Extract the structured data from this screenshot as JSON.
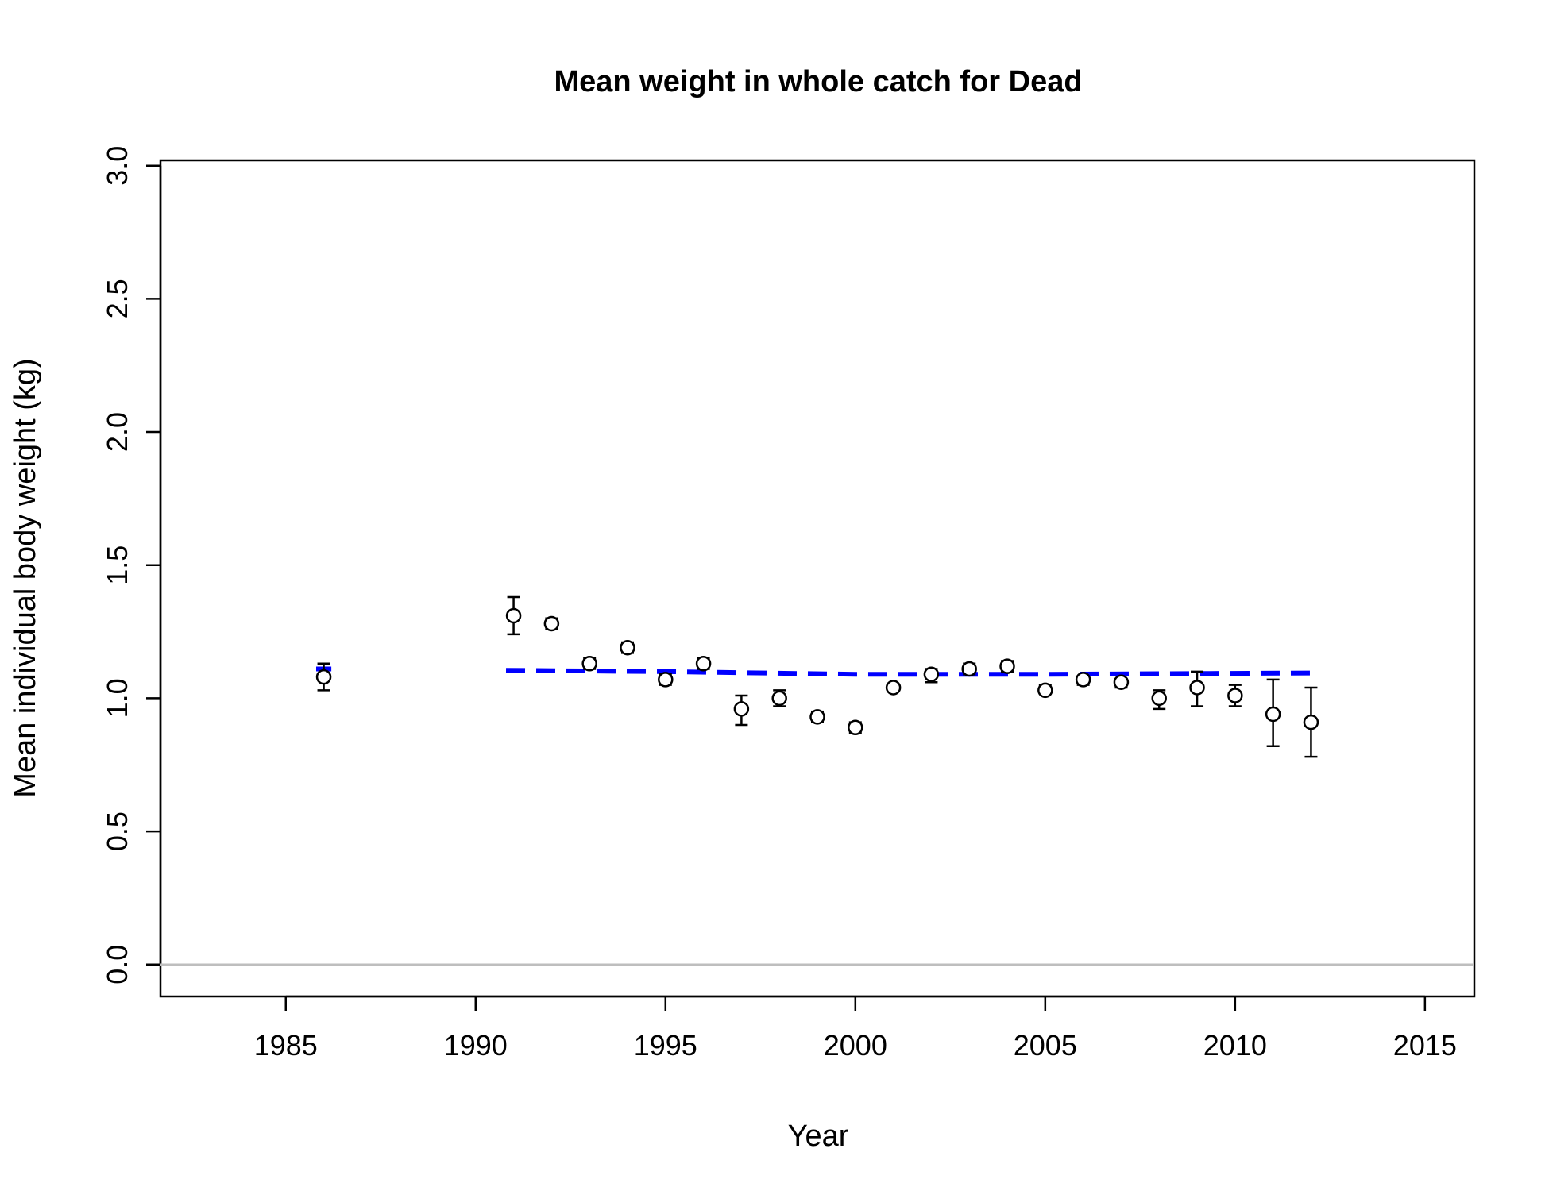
{
  "chart_data": {
    "type": "scatter",
    "title": "Mean weight in whole catch for Dead",
    "xlabel": "Year",
    "ylabel": "Mean individual body weight (kg)",
    "xlim": [
      1981.7,
      2016.3
    ],
    "ylim": [
      -0.12,
      3.02
    ],
    "x_ticks": [
      1985,
      1990,
      1995,
      2000,
      2005,
      2010,
      2015
    ],
    "y_ticks": [
      0.0,
      0.5,
      1.0,
      1.5,
      2.0,
      2.5,
      3.0
    ],
    "x_tick_labels": [
      "1985",
      "1990",
      "1995",
      "2000",
      "2005",
      "2010",
      "2015"
    ],
    "y_tick_labels": [
      "0.0",
      "0.5",
      "1.0",
      "1.5",
      "2.0",
      "2.5",
      "3.0"
    ],
    "reference_line": {
      "y": 0,
      "color": "#bebebe"
    },
    "grid": false,
    "legend": "none",
    "observed": {
      "marker": "open-circle",
      "color": "#000000",
      "points": [
        {
          "x": 1986,
          "y": 1.08,
          "lo": 1.03,
          "hi": 1.13
        },
        {
          "x": 1991,
          "y": 1.31,
          "lo": 1.24,
          "hi": 1.38
        },
        {
          "x": 1992,
          "y": 1.28,
          "lo": 1.26,
          "hi": 1.3
        },
        {
          "x": 1993,
          "y": 1.13,
          "lo": 1.11,
          "hi": 1.15
        },
        {
          "x": 1994,
          "y": 1.19,
          "lo": 1.17,
          "hi": 1.21
        },
        {
          "x": 1995,
          "y": 1.07,
          "lo": 1.05,
          "hi": 1.09
        },
        {
          "x": 1996,
          "y": 1.13,
          "lo": 1.11,
          "hi": 1.15
        },
        {
          "x": 1997,
          "y": 0.96,
          "lo": 0.9,
          "hi": 1.01
        },
        {
          "x": 1998,
          "y": 1.0,
          "lo": 0.97,
          "hi": 1.03
        },
        {
          "x": 1999,
          "y": 0.93,
          "lo": 0.91,
          "hi": 0.95
        },
        {
          "x": 2000,
          "y": 0.89,
          "lo": 0.87,
          "hi": 0.91
        },
        {
          "x": 2001,
          "y": 1.04,
          "lo": 1.03,
          "hi": 1.05
        },
        {
          "x": 2002,
          "y": 1.09,
          "lo": 1.06,
          "hi": 1.11
        },
        {
          "x": 2003,
          "y": 1.11,
          "lo": 1.09,
          "hi": 1.13
        },
        {
          "x": 2004,
          "y": 1.12,
          "lo": 1.1,
          "hi": 1.14
        },
        {
          "x": 2005,
          "y": 1.03,
          "lo": 1.02,
          "hi": 1.05
        },
        {
          "x": 2006,
          "y": 1.07,
          "lo": 1.05,
          "hi": 1.08
        },
        {
          "x": 2007,
          "y": 1.06,
          "lo": 1.04,
          "hi": 1.07
        },
        {
          "x": 2008,
          "y": 1.0,
          "lo": 0.96,
          "hi": 1.03
        },
        {
          "x": 2009,
          "y": 1.04,
          "lo": 0.97,
          "hi": 1.1
        },
        {
          "x": 2010,
          "y": 1.01,
          "lo": 0.97,
          "hi": 1.05
        },
        {
          "x": 2011,
          "y": 0.94,
          "lo": 0.82,
          "hi": 1.07
        },
        {
          "x": 2012,
          "y": 0.91,
          "lo": 0.78,
          "hi": 1.04
        }
      ]
    },
    "expected": {
      "style": "dashed",
      "color": "#0000ff",
      "segments": [
        [
          {
            "x": 1985.8,
            "y": 1.11
          },
          {
            "x": 1986.2,
            "y": 1.11
          }
        ],
        [
          {
            "x": 1990.8,
            "y": 1.105
          },
          {
            "x": 1995,
            "y": 1.1
          },
          {
            "x": 2000,
            "y": 1.09
          },
          {
            "x": 2005,
            "y": 1.09
          },
          {
            "x": 2012.2,
            "y": 1.095
          }
        ]
      ]
    }
  }
}
